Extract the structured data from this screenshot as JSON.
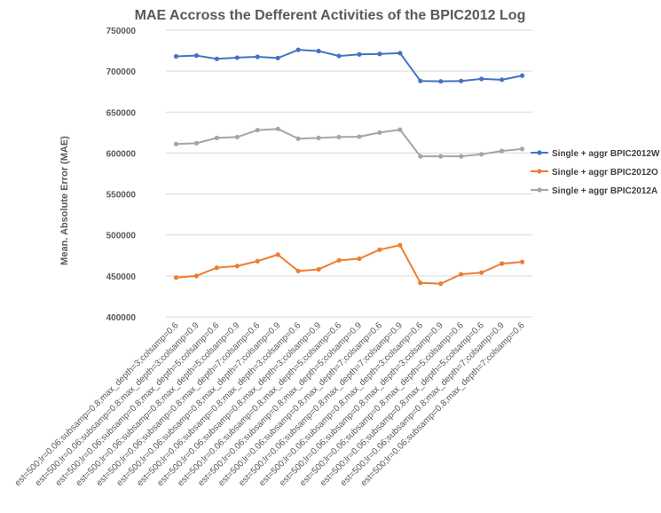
{
  "chart_data": {
    "type": "line",
    "title": "MAE Accross the Defferent Activities of the BPIC2012 Log",
    "xlabel": "",
    "ylabel": "Mean. Absolute Error (MAE)",
    "ylim": [
      400000,
      750000
    ],
    "yticks": [
      "400000",
      "450000",
      "500000",
      "550000",
      "600000",
      "650000",
      "700000",
      "750000"
    ],
    "grid": true,
    "legend_position": "right",
    "categories": [
      "est=500;lr=0.06;subsamp=0.8;max_depth=3;colsamp=0.6",
      "est=500;lr=0.06;subsamp=0.8;max_depth=3;colsamp=0.9",
      "est=500;lr=0.06;subsamp=0.8;max_depth=5;colsamp=0.6",
      "est=500;lr=0.06;subsamp=0.8;max_depth=5;colsamp=0.9",
      "est=500;lr=0.06;subsamp=0.8;max_depth=7;colsamp=0.6",
      "est=500;lr=0.06;subsamp=0.8;max_depth=7;colsamp=0.9",
      "est=500;lr=0.06;subsamp=0.8;max_depth=3;colsamp=0.6",
      "est=500;lr=0.06;subsamp=0.8;max_depth=3;colsamp=0.9",
      "est=500;lr=0.06;subsamp=0.8;max_depth=5;colsamp=0.6",
      "est=500;lr=0.06;subsamp=0.8;max_depth=5;colsamp=0.9",
      "est=500;lr=0.06;subsamp=0.8;max_depth=7;colsamp=0.6",
      "est=500;lr=0.06;subsamp=0.8;max_depth=7;colsamp=0.9",
      "est=500;lr=0.06;subsamp=0.8;max_depth=3;colsamp=0.6",
      "est=500;lr=0.06;subsamp=0.8;max_depth=3;colsamp=0.9",
      "est=500;lr=0.06;subsamp=0.8;max_depth=5;colsamp=0.6",
      "est=500;lr=0.06;subsamp=0.8;max_depth=5;colsamp=0.6",
      "est=500;lr=0.06;subsamp=0.8;max_depth=7;colsamp=0.9",
      "est=500;lr=0.06;subsamp=0.8;max_depth=7;colsamp=0.6"
    ],
    "series": [
      {
        "name": "Single + aggr BPIC2012W",
        "color": "#4472c4",
        "values": [
          718000,
          719000,
          715000,
          716500,
          717500,
          716000,
          726000,
          724500,
          718500,
          720500,
          721000,
          722000,
          688000,
          687500,
          688000,
          690500,
          689500,
          694500
        ]
      },
      {
        "name": "Single + aggr BPIC2012O",
        "color": "#ed7d31",
        "values": [
          448000,
          450000,
          460000,
          462000,
          468000,
          476000,
          456000,
          458000,
          469000,
          471000,
          482000,
          487500,
          441500,
          440500,
          452000,
          454000,
          465000,
          467000
        ]
      },
      {
        "name": "Single + aggr BPIC2012A",
        "color": "#a5a5a5",
        "values": [
          611000,
          612000,
          618500,
          619500,
          628000,
          629500,
          617500,
          618500,
          619500,
          620000,
          625000,
          628500,
          596000,
          596000,
          596000,
          598500,
          602500,
          605000
        ]
      }
    ]
  }
}
